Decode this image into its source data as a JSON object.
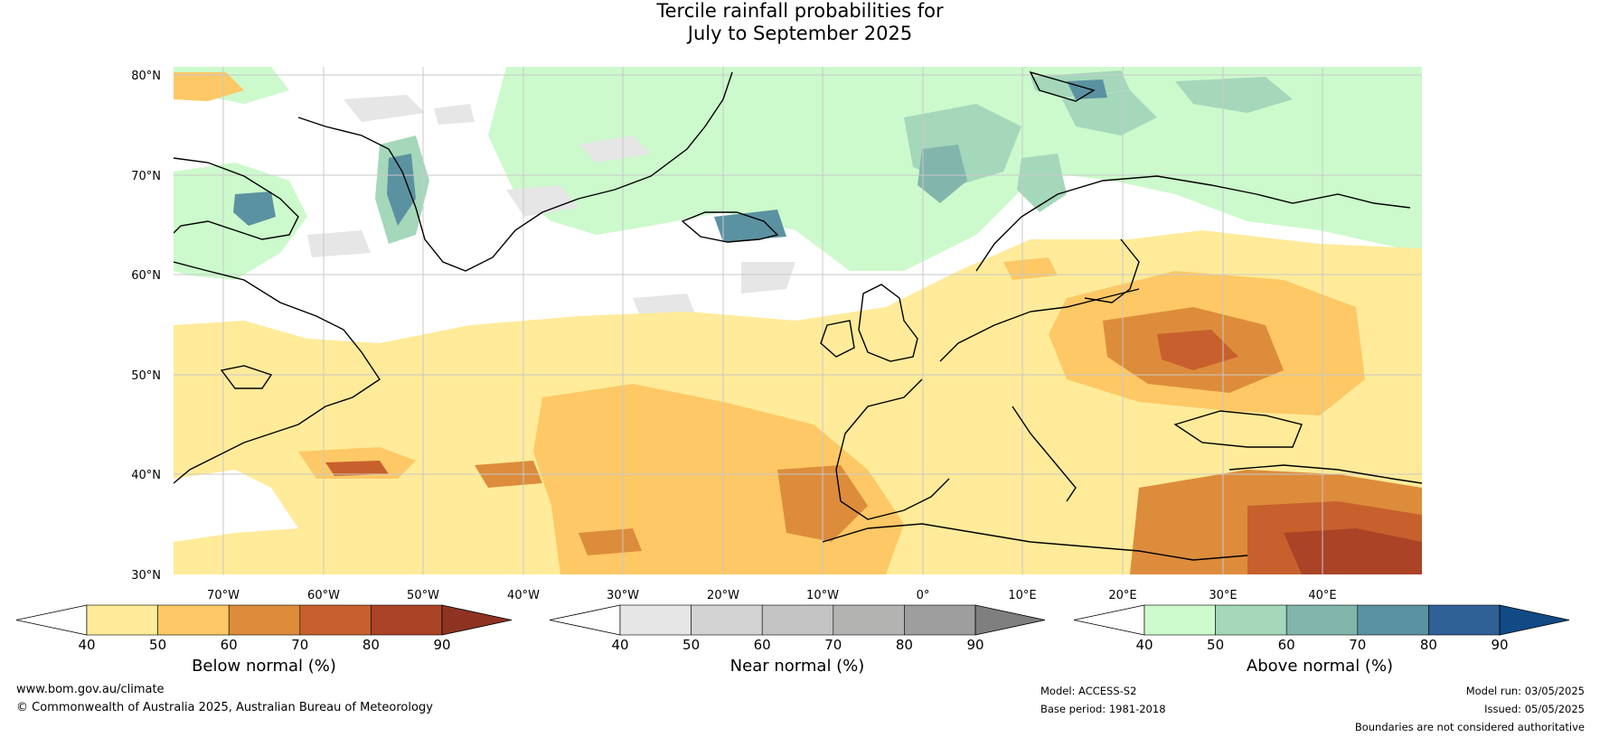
{
  "title": {
    "line1": "Tercile rainfall probabilities for",
    "line2": "July to September 2025"
  },
  "map": {
    "lat_ticks": [
      "80°N",
      "70°N",
      "60°N",
      "50°N",
      "40°N",
      "30°N"
    ],
    "lon_ticks": [
      "70°W",
      "60°W",
      "50°W",
      "40°W",
      "30°W",
      "20°W",
      "10°W",
      "0°",
      "10°E",
      "20°E",
      "30°E",
      "40°E"
    ]
  },
  "colorbars": [
    {
      "id": "below",
      "label": "Below normal (%)",
      "ticks": [
        "40",
        "50",
        "60",
        "70",
        "80",
        "90"
      ],
      "colors": [
        "#ffffff",
        "#ffeb99",
        "#fdc865",
        "#dd8c3c",
        "#c7602d",
        "#ab4326",
        "#8e3322"
      ]
    },
    {
      "id": "near",
      "label": "Near normal (%)",
      "ticks": [
        "40",
        "50",
        "60",
        "70",
        "80",
        "90"
      ],
      "colors": [
        "#ffffff",
        "#e6e6e6",
        "#d3d3d3",
        "#c4c4c4",
        "#b3b4b1",
        "#9e9e9e",
        "#7f7f7f"
      ]
    },
    {
      "id": "above",
      "label": "Above normal (%)",
      "ticks": [
        "40",
        "50",
        "60",
        "70",
        "80",
        "90"
      ],
      "colors": [
        "#ffffff",
        "#ccfacc",
        "#a5d7bb",
        "#82b6ac",
        "#5b92a1",
        "#2f6196",
        "#124a86"
      ]
    }
  ],
  "footer": {
    "website": "www.bom.gov.au/climate",
    "copyright": "© Commonwealth of Australia 2025, Australian Bureau of Meteorology",
    "model": "Model: ACCESS-S2",
    "base_period": "Base period: 1981-2018",
    "model_run": "Model run: 03/05/2025",
    "issued": "Issued: 05/05/2025",
    "disclaimer": "Boundaries are not considered authoritative"
  }
}
